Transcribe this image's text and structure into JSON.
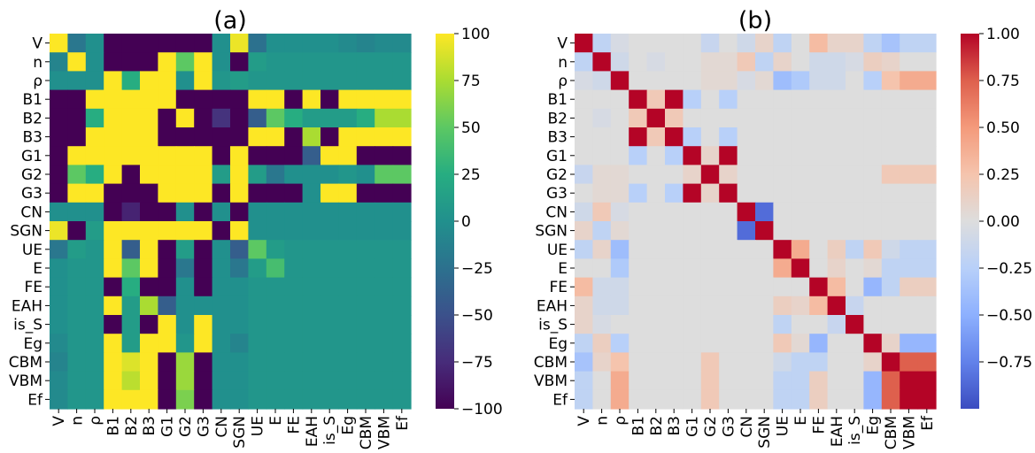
{
  "chart_data": [
    {
      "type": "heatmap",
      "title": "(a)",
      "labels": [
        "V",
        "n",
        "ρ",
        "B1",
        "B2",
        "B3",
        "G1",
        "G2",
        "G3",
        "CN",
        "SGN",
        "UE",
        "E",
        "FE",
        "EAH",
        "is_S",
        "Eg",
        "CBM",
        "VBM",
        "Ef"
      ],
      "colormap": "viridis",
      "vmin": -100,
      "vmax": 100,
      "colorbar_ticks": [
        100,
        75,
        50,
        25,
        0,
        -25,
        -50,
        -75,
        -100
      ],
      "colorbar_tick_labels": [
        "100",
        "75",
        "50",
        "25",
        "0",
        "−25",
        "−50",
        "−75",
        "−100"
      ],
      "values": [
        [
          100,
          -20,
          0,
          -100,
          -100,
          -100,
          -100,
          -100,
          -100,
          0,
          95,
          -25,
          0,
          0,
          0,
          0,
          -5,
          -10,
          -5,
          -5
        ],
        [
          -10,
          100,
          0,
          -100,
          -100,
          -100,
          100,
          50,
          100,
          0,
          -100,
          10,
          5,
          5,
          5,
          5,
          5,
          5,
          5,
          5
        ],
        [
          0,
          0,
          0,
          100,
          25,
          100,
          100,
          0,
          100,
          5,
          10,
          5,
          5,
          5,
          5,
          5,
          5,
          5,
          5,
          5
        ],
        [
          -100,
          -100,
          100,
          100,
          100,
          100,
          100,
          -100,
          -100,
          -100,
          -100,
          100,
          100,
          -100,
          100,
          -100,
          100,
          100,
          100,
          100
        ],
        [
          -100,
          -100,
          25,
          100,
          100,
          100,
          -100,
          100,
          -100,
          -70,
          -100,
          -40,
          50,
          25,
          10,
          10,
          10,
          25,
          75,
          75
        ],
        [
          -100,
          -100,
          100,
          100,
          100,
          100,
          -100,
          -100,
          -100,
          -100,
          -100,
          100,
          100,
          -100,
          75,
          -100,
          100,
          100,
          100,
          100
        ],
        [
          -100,
          100,
          100,
          100,
          100,
          100,
          100,
          100,
          100,
          -100,
          100,
          -100,
          -100,
          -100,
          -40,
          100,
          100,
          -100,
          -100,
          -100
        ],
        [
          -100,
          50,
          25,
          100,
          -100,
          100,
          100,
          100,
          100,
          10,
          100,
          10,
          -20,
          0,
          0,
          0,
          5,
          0,
          50,
          50
        ],
        [
          -100,
          100,
          100,
          -100,
          -100,
          -100,
          100,
          100,
          100,
          -100,
          100,
          -100,
          -100,
          -100,
          0,
          100,
          100,
          -100,
          -100,
          -100
        ],
        [
          0,
          0,
          0,
          -100,
          -80,
          -100,
          -100,
          0,
          -100,
          0,
          -100,
          0,
          0,
          0,
          0,
          0,
          0,
          0,
          0,
          0
        ],
        [
          95,
          -100,
          10,
          100,
          100,
          100,
          100,
          100,
          100,
          -100,
          100,
          0,
          0,
          0,
          0,
          0,
          0,
          0,
          0,
          0
        ],
        [
          -20,
          10,
          5,
          100,
          -40,
          100,
          -100,
          10,
          -100,
          0,
          -40,
          50,
          10,
          5,
          5,
          5,
          5,
          5,
          5,
          5
        ],
        [
          0,
          5,
          5,
          100,
          50,
          100,
          -100,
          -20,
          -100,
          0,
          -20,
          10,
          40,
          5,
          5,
          5,
          5,
          5,
          5,
          5
        ],
        [
          0,
          5,
          5,
          -100,
          25,
          -100,
          -100,
          0,
          -100,
          0,
          0,
          5,
          5,
          5,
          5,
          5,
          5,
          5,
          5,
          5
        ],
        [
          0,
          5,
          5,
          100,
          10,
          75,
          -40,
          0,
          0,
          0,
          0,
          5,
          5,
          5,
          5,
          5,
          5,
          5,
          5,
          5
        ],
        [
          0,
          5,
          5,
          -100,
          10,
          -100,
          100,
          0,
          100,
          0,
          0,
          5,
          5,
          5,
          5,
          5,
          5,
          5,
          5,
          5
        ],
        [
          -5,
          5,
          5,
          100,
          10,
          100,
          100,
          5,
          100,
          0,
          -10,
          5,
          5,
          5,
          5,
          5,
          5,
          5,
          5,
          5
        ],
        [
          -10,
          5,
          5,
          100,
          90,
          100,
          -100,
          70,
          -100,
          0,
          0,
          5,
          5,
          5,
          5,
          5,
          5,
          5,
          5,
          5
        ],
        [
          -5,
          5,
          5,
          100,
          80,
          100,
          -100,
          70,
          -100,
          0,
          0,
          5,
          5,
          5,
          5,
          5,
          5,
          5,
          5,
          5
        ],
        [
          -5,
          5,
          5,
          100,
          100,
          100,
          -100,
          60,
          -100,
          0,
          0,
          5,
          5,
          5,
          5,
          5,
          5,
          5,
          5,
          5
        ]
      ]
    },
    {
      "type": "heatmap",
      "title": "(b)",
      "labels": [
        "V",
        "n",
        "ρ",
        "B1",
        "B2",
        "B3",
        "G1",
        "G2",
        "G3",
        "CN",
        "SGN",
        "UE",
        "E",
        "FE",
        "EAH",
        "is_S",
        "Eg",
        "CBM",
        "VBM",
        "Ef"
      ],
      "colormap": "coolwarm",
      "vmin": -1,
      "vmax": 1,
      "colorbar_ticks": [
        1,
        0.75,
        0.5,
        0.25,
        0,
        -0.25,
        -0.5,
        -0.75
      ],
      "colorbar_tick_labels": [
        "1.00",
        "0.75",
        "0.50",
        "0.25",
        "0.00",
        "−0.25",
        "−0.50",
        "−0.75"
      ],
      "values": [
        [
          1,
          -0.2,
          -0.05,
          0,
          0,
          0,
          0,
          -0.15,
          0,
          -0.1,
          0.1,
          -0.2,
          0,
          0.3,
          0.1,
          0.1,
          -0.2,
          -0.35,
          -0.2,
          -0.2
        ],
        [
          -0.2,
          1,
          -0.1,
          0,
          -0.05,
          0,
          0,
          0.05,
          0.05,
          0.2,
          -0.2,
          0.1,
          0,
          -0.1,
          -0.1,
          -0.05,
          0.15,
          0.1,
          0,
          0
        ],
        [
          -0.05,
          -0.1,
          1,
          0,
          0,
          0,
          0,
          0.05,
          0.05,
          -0.05,
          0.05,
          -0.4,
          -0.3,
          -0.1,
          -0.1,
          0,
          -0.25,
          0.25,
          0.4,
          0.4
        ],
        [
          0,
          0,
          0,
          1,
          0.2,
          1,
          -0.25,
          0,
          -0.25,
          0,
          0,
          0,
          0,
          0,
          0,
          0,
          0,
          0,
          0,
          0
        ],
        [
          0,
          -0.05,
          0,
          0.2,
          1,
          0.2,
          0,
          0,
          0,
          0,
          0,
          0,
          0,
          0,
          0,
          0,
          0,
          0,
          0,
          0
        ],
        [
          0,
          0,
          0,
          1,
          0.2,
          1,
          -0.25,
          0,
          -0.25,
          0,
          0,
          0,
          0,
          0,
          0,
          0,
          0,
          0,
          0,
          0
        ],
        [
          0,
          0,
          0,
          -0.25,
          0,
          -0.25,
          1,
          0.1,
          1,
          0,
          0,
          0,
          0,
          0,
          0,
          0,
          0,
          0,
          0,
          0
        ],
        [
          -0.15,
          0.05,
          0.05,
          0,
          0,
          0,
          0.1,
          1,
          0.1,
          0,
          0,
          0,
          0,
          0,
          0,
          0,
          0,
          0.2,
          0.2,
          0.2
        ],
        [
          0,
          0.05,
          0.05,
          -0.25,
          0,
          -0.25,
          1,
          0.1,
          1,
          0,
          0,
          0,
          0,
          0,
          0,
          0,
          0,
          0,
          0,
          0
        ],
        [
          -0.1,
          0.2,
          -0.05,
          0,
          0,
          0,
          0,
          0,
          0,
          1,
          -0.85,
          0,
          0,
          0,
          0,
          0,
          0,
          0,
          0,
          0
        ],
        [
          0.1,
          -0.2,
          0.05,
          0,
          0,
          0,
          0,
          0,
          0,
          -0.85,
          1,
          0,
          0,
          0,
          0,
          0,
          0,
          0,
          0,
          0
        ],
        [
          -0.2,
          0.1,
          -0.4,
          0,
          0,
          0,
          0,
          0,
          0,
          0,
          0,
          1,
          0.4,
          0,
          0.15,
          -0.2,
          0.2,
          -0.1,
          -0.2,
          -0.2
        ],
        [
          0,
          0,
          -0.3,
          0,
          0,
          0,
          0,
          0,
          0,
          0,
          0,
          0.4,
          1,
          0,
          0.1,
          0,
          0.05,
          -0.2,
          -0.2,
          -0.2
        ],
        [
          0.3,
          -0.1,
          -0.1,
          0,
          0,
          0,
          0,
          0,
          0,
          0,
          0,
          0,
          0,
          1,
          0.3,
          0,
          -0.45,
          -0.2,
          0.15,
          0.15
        ],
        [
          0.1,
          -0.1,
          -0.1,
          0,
          0,
          0,
          0,
          0,
          0,
          0,
          0,
          0.15,
          0.1,
          0.3,
          1,
          -0.15,
          0,
          0,
          0,
          0
        ],
        [
          0.1,
          -0.05,
          0,
          0,
          0,
          0,
          0,
          0,
          0,
          0,
          0,
          -0.2,
          0,
          0,
          -0.15,
          1,
          0,
          0,
          0,
          0
        ],
        [
          -0.2,
          0.15,
          -0.25,
          0,
          0,
          0,
          0,
          0,
          0,
          0,
          0,
          0.2,
          0.05,
          -0.45,
          0,
          0,
          1,
          0.1,
          -0.45,
          -0.45
        ],
        [
          -0.35,
          0.1,
          0.25,
          0,
          0,
          0,
          0,
          0.2,
          0,
          0,
          0,
          -0.1,
          -0.2,
          -0.2,
          0,
          0,
          0.1,
          1,
          0.75,
          0.75
        ],
        [
          -0.2,
          0,
          0.4,
          0,
          0,
          0,
          0,
          0.2,
          0,
          0,
          0,
          -0.2,
          -0.2,
          0.15,
          0,
          0,
          -0.45,
          0.75,
          1,
          1
        ],
        [
          -0.2,
          0,
          0.4,
          0,
          0,
          0,
          0,
          0.2,
          0,
          0,
          0,
          -0.2,
          -0.2,
          0.15,
          0,
          0,
          -0.45,
          0.75,
          1,
          1
        ]
      ]
    }
  ]
}
